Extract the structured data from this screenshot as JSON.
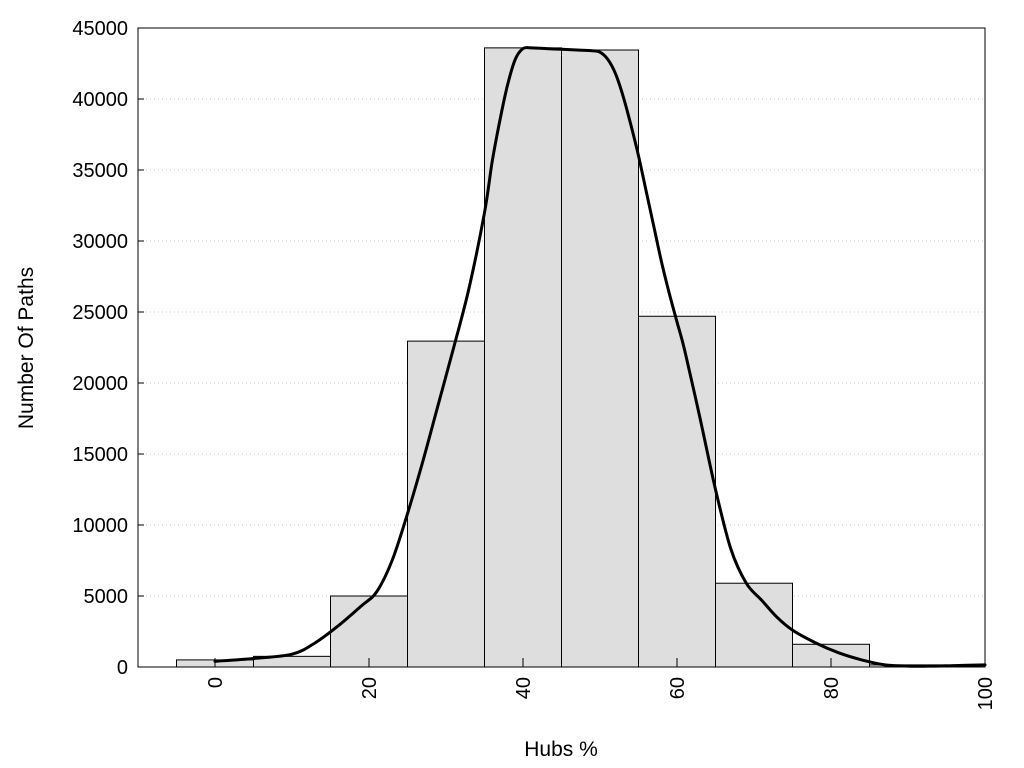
{
  "chart_data": {
    "type": "bar",
    "title": "",
    "xlabel": "Hubs %",
    "ylabel": "Number Of Paths",
    "xlim": [
      -10,
      100
    ],
    "ylim": [
      0,
      45000
    ],
    "xticks": [
      0,
      20,
      40,
      60,
      80,
      100
    ],
    "yticks": [
      0,
      5000,
      10000,
      15000,
      20000,
      25000,
      30000,
      35000,
      40000,
      45000
    ],
    "grid": "horizontal-dotted",
    "bar_color": "#dedede",
    "bars": [
      {
        "x": 0,
        "value": 500
      },
      {
        "x": 10,
        "value": 750
      },
      {
        "x": 20,
        "value": 5000
      },
      {
        "x": 30,
        "value": 22950
      },
      {
        "x": 40,
        "value": 43600
      },
      {
        "x": 50,
        "value": 43450
      },
      {
        "x": 60,
        "value": 24700
      },
      {
        "x": 70,
        "value": 5900
      },
      {
        "x": 80,
        "value": 1600
      },
      {
        "x": 90,
        "value": 150
      }
    ],
    "bar_width": 10,
    "curve": {
      "x": [
        0,
        5,
        10,
        13,
        16,
        19,
        21,
        23,
        25,
        27,
        29,
        31,
        33,
        35,
        36,
        37,
        38,
        39,
        40,
        41,
        43,
        45,
        47,
        49,
        50,
        51,
        52,
        53,
        54,
        55,
        56,
        57,
        58,
        59,
        60,
        61,
        63,
        65,
        67,
        69,
        71,
        73,
        75,
        78,
        81,
        84,
        87,
        90,
        93,
        96,
        100
      ],
      "y": [
        400,
        600,
        900,
        1700,
        2900,
        4300,
        5300,
        7500,
        10800,
        14500,
        18500,
        22500,
        26700,
        32000,
        35600,
        38500,
        41000,
        42800,
        43550,
        43600,
        43550,
        43500,
        43450,
        43400,
        43300,
        42800,
        41800,
        40200,
        38200,
        36000,
        33500,
        31000,
        28500,
        26300,
        24300,
        22300,
        17500,
        12500,
        8300,
        5900,
        4700,
        3500,
        2600,
        1700,
        1000,
        500,
        150,
        60,
        60,
        100,
        150
      ]
    }
  }
}
